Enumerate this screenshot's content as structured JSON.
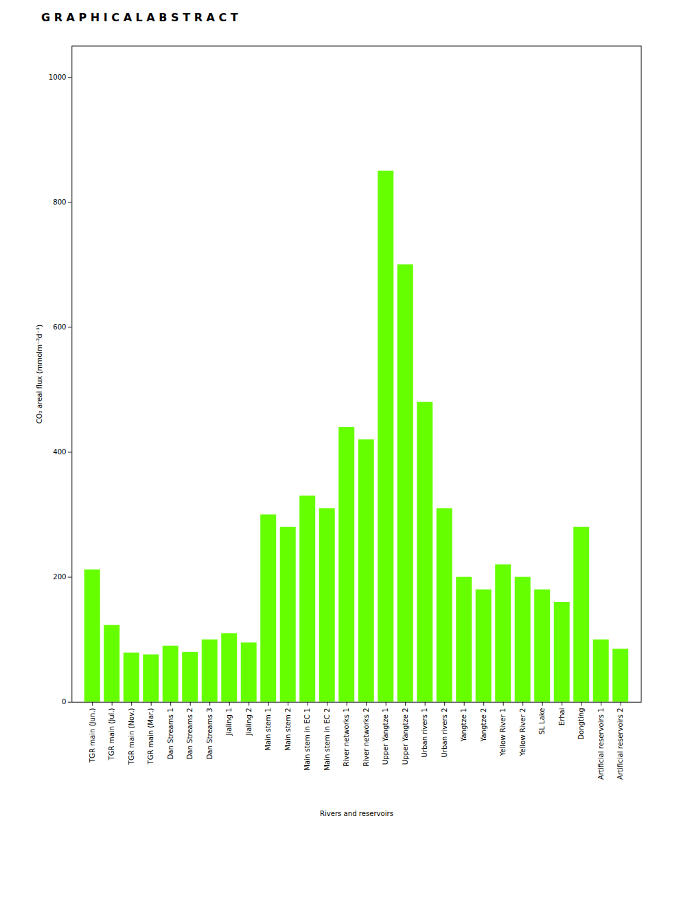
{
  "chart_data": {
    "type": "bar",
    "title": "G R A P H I C A L   A B S T R A C T",
    "categories": [
      "TGR main (Jun.)",
      "TGR main (Jul.)",
      "TGR main (Nov.)",
      "TGR main (Mar.)",
      "Dan Streams 1",
      "Dan Streams 2",
      "Dan Streams 3",
      "Jialing 1",
      "Jialing 2",
      "Main stem 1",
      "Main stem 2",
      "Main stem in EC 1",
      "Main stem in EC 2",
      "River networks 1",
      "River networks 2",
      "Upper Yangtze 1",
      "Upper Yangtze 2",
      "Urban rivers 1",
      "Urban rivers 2",
      "Yangtze 1",
      "Yangtze 2",
      "Yellow River 1",
      "Yellow River 2",
      "SL Lake",
      "Erhai",
      "Dongting",
      "Artificial reservoirs 1",
      "Artificial reservoirs 2"
    ],
    "values": [
      212,
      123,
      79,
      76,
      90,
      80,
      100,
      110,
      95,
      300,
      280,
      330,
      310,
      440,
      420,
      850,
      700,
      480,
      310,
      200,
      180,
      220,
      200,
      180,
      160,
      280,
      100,
      85
    ],
    "color": "#66ff00",
    "x_label": "Rivers and reservoirs",
    "y_label": "CO₂ areal flux (mmolm⁻²d⁻¹)",
    "ylim": [
      0,
      1050
    ],
    "yticks": [
      0,
      200,
      400,
      600,
      800,
      1000
    ]
  }
}
